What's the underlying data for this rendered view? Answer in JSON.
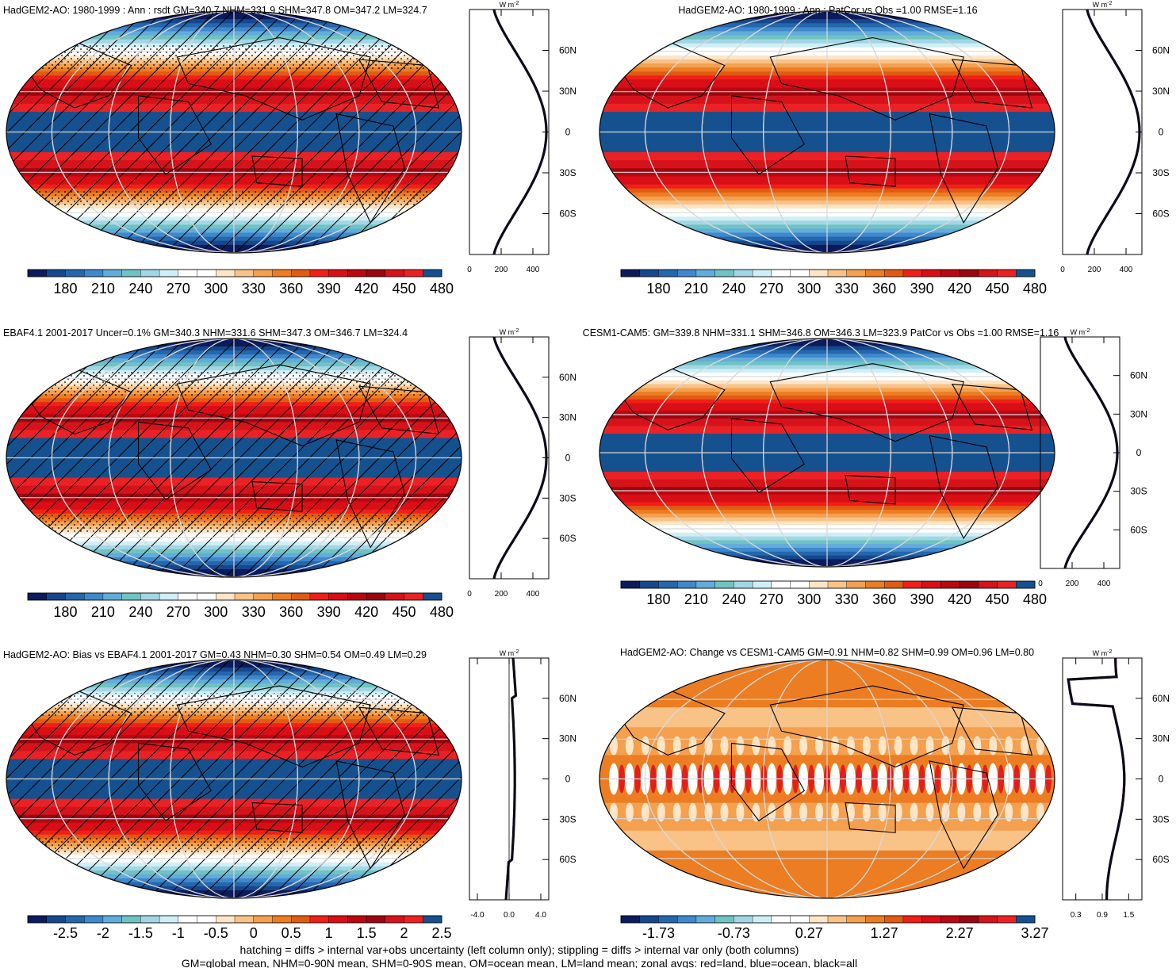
{
  "chart_data": [
    {
      "type": "heatmap",
      "title": "HadGEM2-AO: 1980-1999 : Ann : rsdt GM=340.7 NHM=331.9 SHM=347.8 OM=347.2 LM=324.7",
      "variable": "rsdt",
      "units": "W m-2",
      "colorbar_labels": [
        "180",
        "210",
        "240",
        "270",
        "300",
        "330",
        "360",
        "390",
        "420",
        "450",
        "480"
      ],
      "colorbar_range": [
        165,
        495
      ],
      "field": "insolation",
      "hatching": true,
      "stippling": true,
      "profile": {
        "xticks": [
          "0",
          "200",
          "400"
        ],
        "xlim": [
          0,
          500
        ],
        "lat_labels": [
          "60N",
          "30N",
          "0",
          "30S",
          "60S"
        ],
        "profile_kind": "insolation"
      }
    },
    {
      "type": "heatmap",
      "title": "HadGEM2-AO: 1980-1999 : Ann : PatCor vs Obs =1.00 RMSE=1.16",
      "variable": "rsdt",
      "units": "W m-2",
      "colorbar_labels": [
        "180",
        "210",
        "240",
        "270",
        "300",
        "330",
        "360",
        "390",
        "420",
        "450",
        "480"
      ],
      "colorbar_range": [
        165,
        495
      ],
      "field": "insolation",
      "hatching": false,
      "stippling": false,
      "profile": {
        "xticks": [
          "0",
          "200",
          "400"
        ],
        "xlim": [
          0,
          500
        ],
        "lat_labels": [
          "60N",
          "30N",
          "0",
          "30S",
          "60S"
        ],
        "profile_kind": "insolation"
      }
    },
    {
      "type": "heatmap",
      "title": "EBAF4.1 2001-2017 Uncer=0.1% GM=340.3 NHM=331.6 SHM=347.3 OM=346.7 LM=324.4",
      "variable": "rsdt",
      "units": "W m-2",
      "colorbar_labels": [
        "180",
        "210",
        "240",
        "270",
        "300",
        "330",
        "360",
        "390",
        "420",
        "450",
        "480"
      ],
      "colorbar_range": [
        165,
        495
      ],
      "field": "insolation",
      "hatching": true,
      "stippling": true,
      "profile": {
        "xticks": [
          "0",
          "200",
          "400"
        ],
        "xlim": [
          0,
          500
        ],
        "lat_labels": [
          "60N",
          "30N",
          "0",
          "30S",
          "60S"
        ],
        "profile_kind": "insolation"
      }
    },
    {
      "type": "heatmap",
      "title": "CESM1-CAM5: GM=339.8 NHM=331.1 SHM=346.8 OM=346.3 LM=323.9 PatCor vs Obs =1.00 RMSE=1.16",
      "variable": "rsdt",
      "units": "W m-2",
      "colorbar_labels": [
        "180",
        "210",
        "240",
        "270",
        "300",
        "330",
        "360",
        "390",
        "420",
        "450",
        "480"
      ],
      "colorbar_range": [
        165,
        495
      ],
      "field": "insolation",
      "hatching": false,
      "stippling": false,
      "profile": {
        "xticks": [
          "0",
          "200",
          "400"
        ],
        "xlim": [
          0,
          500
        ],
        "lat_labels": [
          "60N",
          "30N",
          "0",
          "30S",
          "60S"
        ],
        "profile_kind": "insolation"
      }
    },
    {
      "type": "heatmap",
      "title": "HadGEM2-AO: Bias vs EBAF4.1 2001-2017 GM=0.43 NHM=0.30 SHM=0.54 OM=0.49 LM=0.29",
      "variable": "rsdt bias",
      "units": "W m-2",
      "colorbar_labels": [
        "-2.5",
        "-2",
        "-1.5",
        "-1",
        "-0.5",
        "0",
        "0.5",
        "1",
        "1.5",
        "2",
        "2.5"
      ],
      "colorbar_range": [
        -2.75,
        2.75
      ],
      "field": "insolation",
      "hatching": true,
      "stippling": true,
      "profile": {
        "xticks": [
          "-4.0",
          "0.0",
          "4.0"
        ],
        "xlim": [
          -5,
          5
        ],
        "lat_labels": [
          "60N",
          "30N",
          "0",
          "30S",
          "60S"
        ],
        "profile_kind": "bias"
      }
    },
    {
      "type": "heatmap",
      "title": "HadGEM2-AO: Change vs CESM1-CAM5 GM=0.91 NHM=0.82 SHM=0.99 OM=0.96 LM=0.80",
      "variable": "rsdt change",
      "units": "W m-2",
      "colorbar_labels": [
        "-1.73",
        "-0.73",
        "0.27",
        "1.27",
        "2.27",
        "3.27"
      ],
      "colorbar_range": [
        -2.23,
        3.77
      ],
      "field": "change",
      "hatching": false,
      "stippling": true,
      "profile": {
        "xticks": [
          "0.3",
          "0.9",
          "1.5"
        ],
        "xlim": [
          0,
          1.8
        ],
        "lat_labels": [
          "60N",
          "30N",
          "0",
          "30S",
          "60S"
        ],
        "profile_kind": "change"
      }
    }
  ],
  "units_label": "W m",
  "units_superscript": "-2",
  "footnote_line1": "hatching = diffs > internal var+obs uncertainty (left column only); stippling = diffs > internal var only (both columns)",
  "footnote_line2": "GM=global mean, NHM=0-90N mean, SHM=0-90S mean, OM=ocean mean, LM=land mean; zonal avgs: red=land, blue=ocean, black=all"
}
